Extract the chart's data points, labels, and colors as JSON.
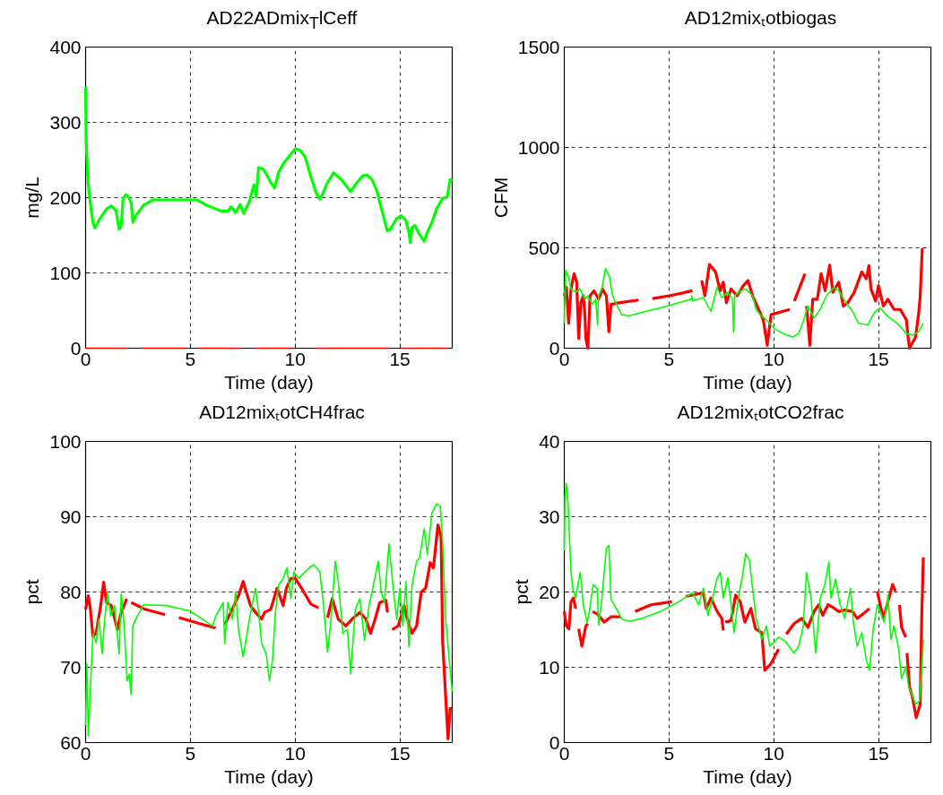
{
  "chart_data": [
    {
      "type": "line",
      "title": "AD22ADmix$_{T}$lCeff",
      "xlabel": "Time (day)",
      "ylabel": "mg/L",
      "xlim": [
        0,
        17.5
      ],
      "ylim": [
        0,
        400
      ],
      "xticks": [
        0,
        5,
        10,
        15
      ],
      "yticks": [
        0,
        100,
        200,
        300,
        400
      ],
      "grid": true,
      "series": [
        {
          "color": "#00ff00",
          "x": [
            0,
            0.03,
            0.12,
            0.23,
            0.35,
            0.44,
            0.64,
            1.0,
            1.23,
            1.45,
            1.6,
            1.7,
            1.79,
            1.93,
            2.08,
            2.18,
            2.26,
            2.4,
            2.77,
            3.2,
            5.33,
            5.77,
            6.5,
            6.8,
            6.94,
            7.16,
            7.38,
            7.55,
            7.82,
            8.04,
            8.14,
            8.26,
            8.48,
            8.67,
            8.84,
            9.02,
            9.21,
            9.43,
            10.01,
            10.23,
            10.48,
            10.74,
            11.04,
            11.18,
            11.33,
            11.55,
            11.84,
            12.21,
            12.65,
            12.87,
            13.23,
            13.45,
            13.67,
            13.89,
            14.18,
            14.4,
            14.55,
            14.84,
            15.06,
            15.28,
            15.43,
            15.5,
            15.58,
            15.72,
            15.94,
            16.16,
            16.31,
            16.53,
            16.75,
            17.04,
            17.26,
            17.4,
            17.5
          ],
          "values": [
            347,
            272,
            220,
            192,
            167,
            160,
            170,
            185,
            189,
            183,
            158,
            163,
            199,
            204,
            200,
            192,
            167,
            176,
            190,
            197,
            197,
            190,
            182,
            182,
            188,
            180,
            191,
            179,
            195,
            217,
            201,
            240,
            238,
            229,
            220,
            213,
            233,
            245,
            265,
            263,
            254,
            229,
            204,
            198,
            206,
            220,
            233,
            224,
            208,
            217,
            229,
            230,
            224,
            210,
            179,
            156,
            158,
            172,
            176,
            170,
            154,
            140,
            160,
            163,
            151,
            142,
            154,
            167,
            185,
            199,
            201,
            224,
            222
          ]
        },
        {
          "color": "#ff0000",
          "x": [
            0,
            2,
            2.3,
            2.7,
            4.8,
            5.1,
            5.4,
            7.4,
            7.7,
            8.1,
            9.9,
            10.5,
            11.0,
            14.5,
            14.8,
            15.1,
            17.3
          ],
          "values": [
            0,
            0,
            null,
            0,
            0,
            null,
            0,
            0,
            null,
            0,
            0,
            null,
            0,
            0,
            null,
            0,
            0
          ]
        }
      ]
    },
    {
      "type": "line",
      "title": "AD12mixₜotbiogas",
      "xlabel": "Time (day)",
      "ylabel": "CFM",
      "xlim": [
        0,
        17.5
      ],
      "ylim": [
        0,
        1500
      ],
      "xticks": [
        0,
        5,
        10,
        15
      ],
      "yticks": [
        0,
        500,
        1000,
        1500
      ],
      "grid": true,
      "series": [
        {
          "color": "#ff0000",
          "x": [
            0,
            0.1,
            0.21,
            0.32,
            0.47,
            0.59,
            0.69,
            0.79,
            0.91,
            0.98,
            1.03,
            1.13,
            1.23,
            1.42,
            1.64,
            1.82,
            2.01,
            2.13,
            2.23,
            2.67,
            3.55,
            3.9,
            4.21,
            5.02,
            6.12,
            6.35,
            6.56,
            6.71,
            6.93,
            7.22,
            7.44,
            7.59,
            7.74,
            7.96,
            8.25,
            8.55,
            8.77,
            8.99,
            9.28,
            9.5,
            9.69,
            9.87,
            10.76,
            10.87,
            10.98,
            11.49,
            11.53,
            11.57,
            11.72,
            11.86,
            12.08,
            12.26,
            12.45,
            12.67,
            12.82,
            13.1,
            13.32,
            13.54,
            13.84,
            14.2,
            14.42,
            14.54,
            14.64,
            14.86,
            15.0,
            15.23,
            15.45,
            15.74,
            16.04,
            16.33,
            16.4,
            16.48,
            16.77,
            16.92,
            16.99,
            17.09
          ],
          "values": [
            261,
            303,
            124,
            295,
            371,
            329,
            48,
            227,
            261,
            176,
            48,
            0,
            261,
            286,
            244,
            295,
            261,
            82,
            218,
            227,
            240,
            null,
            247,
            261,
            286,
            null,
            337,
            261,
            417,
            380,
            286,
            329,
            227,
            295,
            261,
            312,
            337,
            261,
            193,
            141,
            14,
            167,
            193,
            null,
            235,
            371,
            null,
            210,
            14,
            244,
            244,
            371,
            286,
            414,
            278,
            329,
            210,
            227,
            278,
            380,
            346,
            411,
            295,
            235,
            312,
            210,
            244,
            193,
            193,
            141,
            65,
            0,
            56,
            176,
            261,
            499
          ]
        },
        {
          "color": "#00ff00",
          "x": [
            0,
            0.06,
            0.18,
            0.32,
            0.54,
            0.76,
            0.98,
            1.13,
            1.35,
            1.5,
            1.59,
            1.64,
            1.79,
            1.97,
            2.16,
            2.31,
            2.45,
            2.75,
            3.11,
            3.7,
            4.58,
            5.46,
            6.05,
            6.09,
            6.12,
            6.64,
            6.86,
            7.0,
            7.29,
            7.52,
            7.81,
            8.03,
            8.08,
            8.14,
            8.4,
            8.66,
            8.99,
            9.16,
            9.35,
            9.65,
            10.01,
            10.45,
            10.9,
            11.19,
            11.41,
            11.63,
            11.92,
            12.22,
            12.51,
            12.88,
            13.1,
            13.39,
            13.76,
            14.05,
            14.49,
            14.79,
            15.08,
            15.45,
            15.89,
            16.33,
            16.62,
            16.92,
            17.14
          ],
          "values": [
            124,
            389,
            363,
            295,
            278,
            295,
            244,
            261,
            218,
            244,
            116,
            261,
            295,
            397,
            354,
            261,
            227,
            167,
            162,
            179,
            201,
            227,
            244,
            261,
            235,
            252,
            210,
            184,
            303,
            252,
            278,
            244,
            82,
            261,
            286,
            295,
            261,
            193,
            167,
            141,
            99,
            73,
            56,
            73,
            133,
            210,
            150,
            193,
            261,
            303,
            286,
            235,
            184,
            124,
            116,
            176,
            201,
            158,
            124,
            73,
            65,
            82,
            124
          ]
        }
      ]
    },
    {
      "type": "line",
      "title": "AD12mixₜotCH4frac",
      "xlabel": "Time (day)",
      "ylabel": "pct",
      "xlim": [
        0,
        17.5
      ],
      "ylim": [
        60,
        100
      ],
      "xticks": [
        0,
        5,
        10,
        15
      ],
      "yticks": [
        60,
        70,
        80,
        90,
        100
      ],
      "grid": true,
      "series": [
        {
          "color": "#ff0000",
          "x": [
            0,
            0.13,
            0.23,
            0.35,
            0.5,
            0.72,
            0.86,
            1.0,
            1.23,
            1.52,
            1.67,
            1.96,
            2.07,
            2.18,
            2.84,
            3.79,
            4.1,
            4.45,
            5.33,
            6.21,
            6.4,
            6.65,
            7.0,
            7.3,
            7.52,
            7.67,
            7.87,
            8.11,
            8.4,
            8.55,
            8.84,
            9.14,
            9.43,
            9.58,
            9.8,
            10.01,
            10.31,
            10.75,
            11.11,
            11.3,
            11.55,
            11.77,
            12.06,
            12.42,
            12.72,
            13.09,
            13.38,
            13.6,
            13.82,
            14.04,
            14.33,
            14.41,
            14.5,
            14.63,
            14.92,
            15.21,
            15.36,
            15.58,
            15.8,
            16.02,
            16.23,
            16.45,
            16.6,
            16.82,
            16.97,
            17.04,
            17.19,
            17.3,
            17.4,
            17.5
          ],
          "values": [
            77.7,
            79.5,
            77.7,
            74.1,
            74.5,
            78.2,
            81.3,
            78.6,
            78.2,
            75.0,
            77.0,
            79.1,
            null,
            78.6,
            77.7,
            77.0,
            null,
            76.6,
            75.9,
            75.2,
            null,
            75.7,
            77.7,
            79.5,
            81.4,
            80.0,
            78.2,
            77.3,
            76.4,
            77.3,
            77.7,
            80.5,
            78.2,
            80.5,
            81.8,
            81.8,
            80.5,
            78.4,
            77.9,
            null,
            76.6,
            79.1,
            76.4,
            75.5,
            76.4,
            77.3,
            76.4,
            74.5,
            76.4,
            78.6,
            78.9,
            77.3,
            null,
            75.0,
            75.5,
            78.2,
            76.4,
            74.5,
            75.5,
            80.0,
            80.5,
            83.9,
            83.2,
            88.9,
            87.3,
            73.6,
            65.9,
            60.5,
            64.5,
            64.5
          ]
        },
        {
          "color": "#00ff00",
          "x": [
            0,
            0.06,
            0.13,
            0.23,
            0.35,
            0.5,
            0.64,
            0.79,
            0.91,
            1.05,
            1.2,
            1.38,
            1.6,
            1.7,
            1.82,
            1.98,
            2.08,
            2.17,
            2.25,
            2.47,
            2.77,
            3.86,
            4.96,
            5.47,
            6.06,
            6.21,
            6.57,
            6.64,
            6.79,
            7.01,
            7.16,
            7.3,
            7.52,
            7.82,
            8.11,
            8.26,
            8.4,
            8.62,
            8.77,
            8.92,
            9.06,
            9.21,
            9.43,
            9.61,
            9.8,
            9.94,
            10.16,
            10.75,
            10.89,
            11.18,
            11.36,
            11.55,
            11.7,
            11.92,
            12.06,
            12.28,
            12.5,
            12.65,
            12.87,
            13.09,
            13.31,
            13.53,
            13.67,
            13.97,
            14.11,
            14.26,
            14.48,
            14.7,
            14.85,
            15.0,
            15.14,
            15.29,
            15.43,
            15.58,
            15.8,
            15.94,
            16.16,
            16.31,
            16.53,
            16.75,
            16.93,
            17.04,
            17.19,
            17.36,
            17.5
          ],
          "values": [
            62.3,
            70.5,
            60.9,
            67.3,
            74.5,
            73.2,
            76.4,
            71.8,
            76.4,
            79.8,
            76.8,
            78.2,
            71.8,
            79.8,
            76.4,
            68.2,
            69.1,
            66.4,
            75.5,
            76.8,
            78.3,
            78.2,
            77.5,
            76.6,
            75.5,
            76.8,
            78.6,
            73.2,
            78.6,
            76.4,
            80.0,
            75.0,
            71.4,
            76.4,
            80.5,
            77.3,
            73.2,
            71.8,
            68.2,
            70.9,
            77.3,
            80.9,
            81.8,
            83.2,
            79.1,
            82.7,
            81.8,
            83.4,
            83.6,
            82.7,
            78.2,
            72.0,
            75.9,
            84.1,
            81.4,
            74.5,
            75.0,
            69.1,
            77.7,
            79.1,
            73.6,
            78.2,
            80.0,
            84.1,
            80.0,
            78.6,
            86.4,
            80.0,
            76.4,
            80.5,
            75.5,
            81.4,
            72.7,
            80.9,
            84.1,
            84.5,
            88.4,
            85.0,
            90.5,
            91.7,
            91.4,
            86.8,
            76.4,
            70.9,
            66.8
          ]
        }
      ]
    },
    {
      "type": "line",
      "title": "AD12mixₜotCO2frac",
      "xlabel": "Time (day)",
      "ylabel": "pct",
      "xlim": [
        0,
        17.5
      ],
      "ylim": [
        0,
        40
      ],
      "xticks": [
        0,
        5,
        10,
        15
      ],
      "yticks": [
        0,
        10,
        20,
        30,
        40
      ],
      "grid": true,
      "series": [
        {
          "color": "#ff0000",
          "x": [
            0,
            0.1,
            0.22,
            0.32,
            0.44,
            0.54,
            0.6,
            0.69,
            0.84,
            1.03,
            1.13,
            1.2,
            1.35,
            1.57,
            1.91,
            2.23,
            2.67,
            3.0,
            3.38,
            4.14,
            5.14,
            5.5,
            5.79,
            6.64,
            6.78,
            7.0,
            7.3,
            7.52,
            7.59,
            7.64,
            7.69,
            7.96,
            8.18,
            8.4,
            8.62,
            8.91,
            9.13,
            9.43,
            9.57,
            9.87,
            10.23,
            10.4,
            10.6,
            10.97,
            11.34,
            11.63,
            11.92,
            12.14,
            12.34,
            12.59,
            12.8,
            13.1,
            13.39,
            13.76,
            13.98,
            14.27,
            14.57,
            14.8,
            14.94,
            15.08,
            15.23,
            15.45,
            15.67,
            15.81,
            15.9,
            16.0,
            16.1,
            16.3,
            16.33,
            16.36,
            16.48,
            16.62,
            16.8,
            16.99,
            17.06,
            17.14
          ],
          "values": [
            17.4,
            15.5,
            15.1,
            18.7,
            19.2,
            17.8,
            null,
            15.1,
            12.8,
            15.5,
            15.8,
            null,
            17.4,
            17.1,
            16.0,
            16.7,
            16.7,
            null,
            17.4,
            18.3,
            18.7,
            null,
            19.4,
            19.9,
            17.8,
            19.2,
            17.4,
            16.5,
            14.9,
            null,
            16.0,
            16.2,
            19.6,
            18.7,
            16.0,
            17.8,
            15.1,
            14.6,
            9.6,
            10.5,
            12.4,
            null,
            14.4,
            15.8,
            16.5,
            15.3,
            17.4,
            18.3,
            16.9,
            18.3,
            18.0,
            17.4,
            17.6,
            17.4,
            16.5,
            17.1,
            17.8,
            null,
            20.1,
            18.3,
            16.5,
            18.7,
            21.0,
            20.1,
            null,
            18.3,
            15.3,
            14.0,
            null,
            11.9,
            7.4,
            6.0,
            3.3,
            5.1,
            16.5,
            24.6
          ]
        },
        {
          "color": "#00ff00",
          "x": [
            0,
            0.03,
            0.1,
            0.18,
            0.25,
            0.32,
            0.4,
            0.54,
            0.65,
            0.76,
            0.91,
            1.09,
            1.2,
            1.38,
            1.57,
            1.64,
            1.79,
            1.91,
            2.01,
            2.13,
            2.23,
            2.45,
            2.75,
            3.11,
            3.7,
            4.58,
            5.46,
            6.12,
            6.42,
            6.64,
            6.86,
            7.08,
            7.3,
            7.45,
            7.59,
            7.81,
            7.96,
            8.11,
            8.33,
            8.52,
            8.66,
            8.84,
            8.99,
            9.16,
            9.43,
            9.65,
            9.8,
            10.01,
            10.23,
            10.53,
            10.97,
            11.19,
            11.41,
            11.56,
            11.78,
            12.0,
            12.22,
            12.44,
            12.63,
            12.73,
            12.95,
            13.17,
            13.39,
            13.66,
            13.8,
            13.98,
            14.2,
            14.42,
            14.57,
            14.75,
            14.94,
            15.08,
            15.27,
            15.45,
            15.59,
            15.74,
            15.96,
            16.1,
            16.3,
            16.44,
            16.62,
            16.77,
            16.95,
            17.06,
            17.14
          ],
          "values": [
            25.5,
            32.6,
            34.4,
            31.9,
            26.9,
            22.8,
            20.5,
            19.2,
            21.0,
            22.6,
            18.3,
            16.0,
            17.4,
            21.0,
            20.5,
            15.6,
            19.0,
            22.8,
            25.8,
            26.2,
            19.0,
            18.0,
            16.4,
            16.1,
            16.5,
            17.4,
            18.7,
            19.9,
            18.3,
            20.5,
            16.9,
            19.2,
            21.9,
            22.6,
            19.2,
            21.9,
            18.3,
            14.6,
            19.6,
            22.4,
            25.1,
            24.2,
            20.5,
            16.5,
            13.7,
            15.5,
            12.8,
            13.3,
            14.0,
            13.5,
            11.9,
            12.8,
            15.5,
            22.6,
            19.2,
            11.9,
            19.2,
            21.0,
            24.0,
            19.2,
            21.7,
            18.3,
            16.5,
            20.5,
            16.0,
            12.8,
            14.6,
            11.0,
            9.6,
            15.1,
            18.3,
            17.4,
            16.0,
            19.6,
            13.7,
            15.5,
            12.4,
            8.5,
            10.1,
            7.4,
            6.2,
            5.1,
            5.5,
            9.6,
            13.7
          ]
        }
      ]
    }
  ]
}
